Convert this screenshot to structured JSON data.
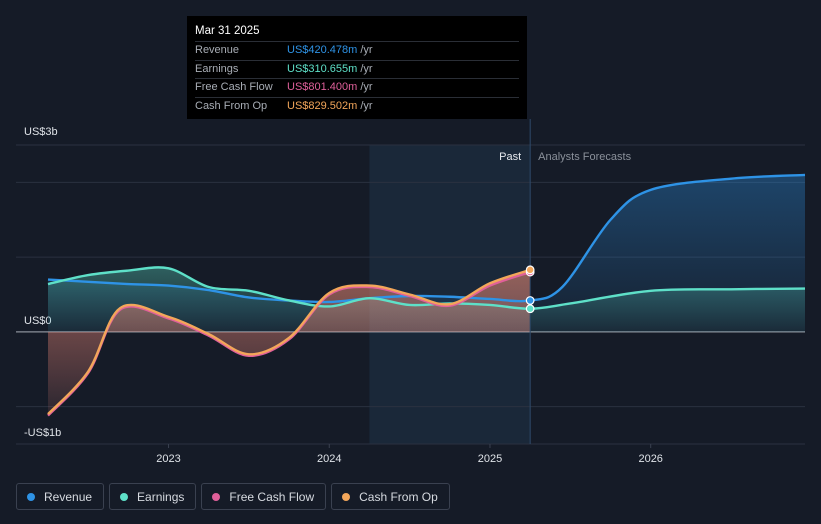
{
  "tooltip": {
    "date": "Mar 31 2025",
    "rows": [
      {
        "label": "Revenue",
        "value": "US$420.478m",
        "unit": "/yr",
        "color": "#2e93e6"
      },
      {
        "label": "Earnings",
        "value": "US$310.655m",
        "unit": "/yr",
        "color": "#5ee0c8"
      },
      {
        "label": "Free Cash Flow",
        "value": "US$801.400m",
        "unit": "/yr",
        "color": "#e0609a"
      },
      {
        "label": "Cash From Op",
        "value": "US$829.502m",
        "unit": "/yr",
        "color": "#f2a65a"
      }
    ]
  },
  "legend": [
    {
      "label": "Revenue",
      "color": "#2e93e6"
    },
    {
      "label": "Earnings",
      "color": "#5ee0c8"
    },
    {
      "label": "Free Cash Flow",
      "color": "#e0609a"
    },
    {
      "label": "Cash From Op",
      "color": "#f2a65a"
    }
  ],
  "chart_data": {
    "type": "line",
    "title": "",
    "x_unit": "year",
    "xlim": [
      2022.25,
      2026.96
    ],
    "ylim": [
      -1.5,
      2.5
    ],
    "y_unit": "US$b",
    "y_tick_labels": [
      {
        "label": "US$3b",
        "value": 2.5
      },
      {
        "label": "US$0",
        "value": 0
      },
      {
        "label": "-US$1b",
        "value": -1.5
      }
    ],
    "x_tick_labels": [
      {
        "label": "2023",
        "value": 2023
      },
      {
        "label": "2024",
        "value": 2024
      },
      {
        "label": "2025",
        "value": 2025
      },
      {
        "label": "2026",
        "value": 2026
      }
    ],
    "gridlines": [
      2.5,
      2.0,
      1.0,
      0,
      -1.0
    ],
    "highlight_range": [
      2024.25,
      2025.25
    ],
    "past_label": "Past",
    "forecast_label": "Analysts Forecasts",
    "divider_x": 2025.25,
    "series": [
      {
        "name": "Revenue",
        "color": "#2e93e6",
        "x": [
          2022.25,
          2022.5,
          2022.75,
          2023.0,
          2023.25,
          2023.5,
          2023.75,
          2024.0,
          2024.25,
          2024.5,
          2024.75,
          2025.0,
          2025.25,
          2025.45,
          2025.75,
          2026.0,
          2026.5,
          2026.96
        ],
        "y": [
          0.7,
          0.67,
          0.64,
          0.62,
          0.56,
          0.46,
          0.42,
          0.4,
          0.45,
          0.48,
          0.47,
          0.44,
          0.42,
          0.6,
          1.5,
          1.9,
          2.05,
          2.1
        ]
      },
      {
        "name": "Earnings",
        "color": "#5ee0c8",
        "x": [
          2022.25,
          2022.5,
          2022.75,
          2023.0,
          2023.25,
          2023.5,
          2023.75,
          2024.0,
          2024.25,
          2024.5,
          2024.75,
          2025.0,
          2025.25,
          2025.5,
          2026.0,
          2026.5,
          2026.96
        ],
        "y": [
          0.64,
          0.76,
          0.82,
          0.85,
          0.6,
          0.55,
          0.42,
          0.34,
          0.45,
          0.36,
          0.38,
          0.36,
          0.31,
          0.38,
          0.55,
          0.57,
          0.58
        ]
      },
      {
        "name": "Free Cash Flow",
        "color": "#e0609a",
        "x": [
          2022.25,
          2022.5,
          2022.7,
          2023.0,
          2023.25,
          2023.5,
          2023.75,
          2024.0,
          2024.25,
          2024.5,
          2024.75,
          2025.0,
          2025.25
        ],
        "y": [
          -1.12,
          -0.55,
          0.3,
          0.18,
          -0.05,
          -0.32,
          -0.1,
          0.5,
          0.6,
          0.48,
          0.35,
          0.62,
          0.8
        ]
      },
      {
        "name": "Cash From Op",
        "color": "#f2a65a",
        "x": [
          2022.25,
          2022.5,
          2022.7,
          2023.0,
          2023.25,
          2023.5,
          2023.75,
          2024.0,
          2024.25,
          2024.5,
          2024.75,
          2025.0,
          2025.25
        ],
        "y": [
          -1.1,
          -0.53,
          0.32,
          0.2,
          -0.03,
          -0.3,
          -0.08,
          0.52,
          0.62,
          0.5,
          0.37,
          0.65,
          0.83
        ]
      }
    ]
  }
}
